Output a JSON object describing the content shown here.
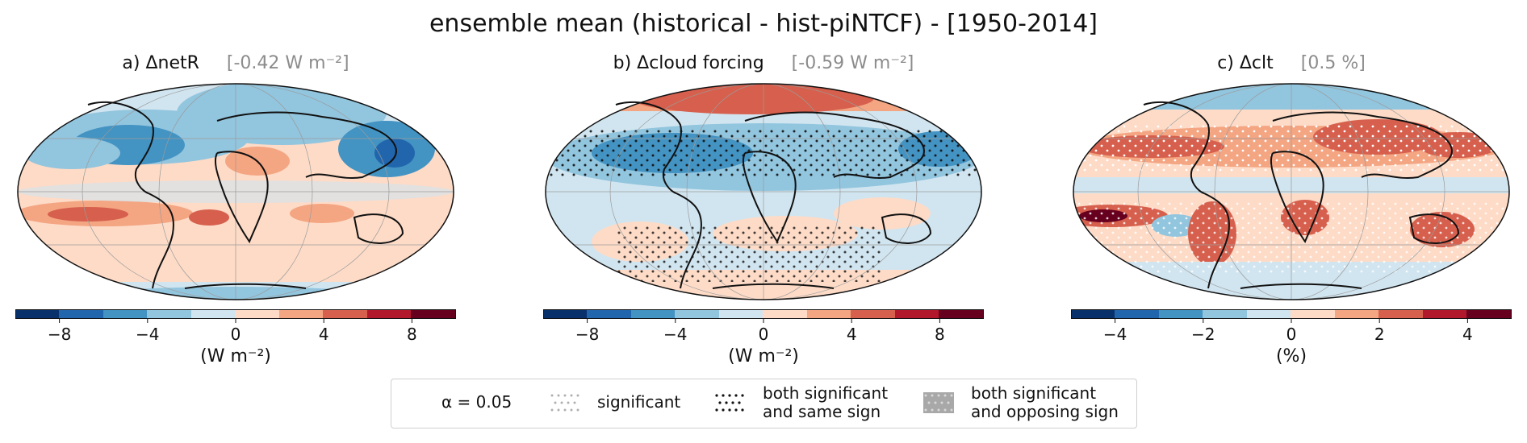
{
  "title": "ensemble mean (historical - hist-piNTCF) - [1950-2014]",
  "colors": {
    "colormap": "RdBu_r (diverging)",
    "bins": [
      "#08306b",
      "#2166ac",
      "#4393c3",
      "#92c5de",
      "#d1e5f0",
      "#fddbc7",
      "#f4a582",
      "#d6604d",
      "#b2182b",
      "#67001f"
    ]
  },
  "panels": [
    {
      "title": "a) ΔnetR",
      "global_mean": "[-0.42 W m⁻²]",
      "ticks": [
        "−8",
        "−4",
        "0",
        "4",
        "8"
      ],
      "unit": "(W m⁻²)"
    },
    {
      "title": "b) Δcloud forcing",
      "global_mean": "[-0.59 W m⁻²]",
      "ticks": [
        "−8",
        "−4",
        "0",
        "4",
        "8"
      ],
      "unit": "(W m⁻²)"
    },
    {
      "title": "c) Δclt",
      "global_mean": "[0.5 %]",
      "ticks": [
        "−4",
        "−2",
        "0",
        "2",
        "4"
      ],
      "unit": "(%)"
    }
  ],
  "legend": {
    "alpha": "α = 0.05",
    "significant": "significant",
    "both_same_1": "both significant",
    "both_same_2": "and same sign",
    "both_opp_1": "both significant",
    "both_opp_2": "and opposing sign"
  }
}
